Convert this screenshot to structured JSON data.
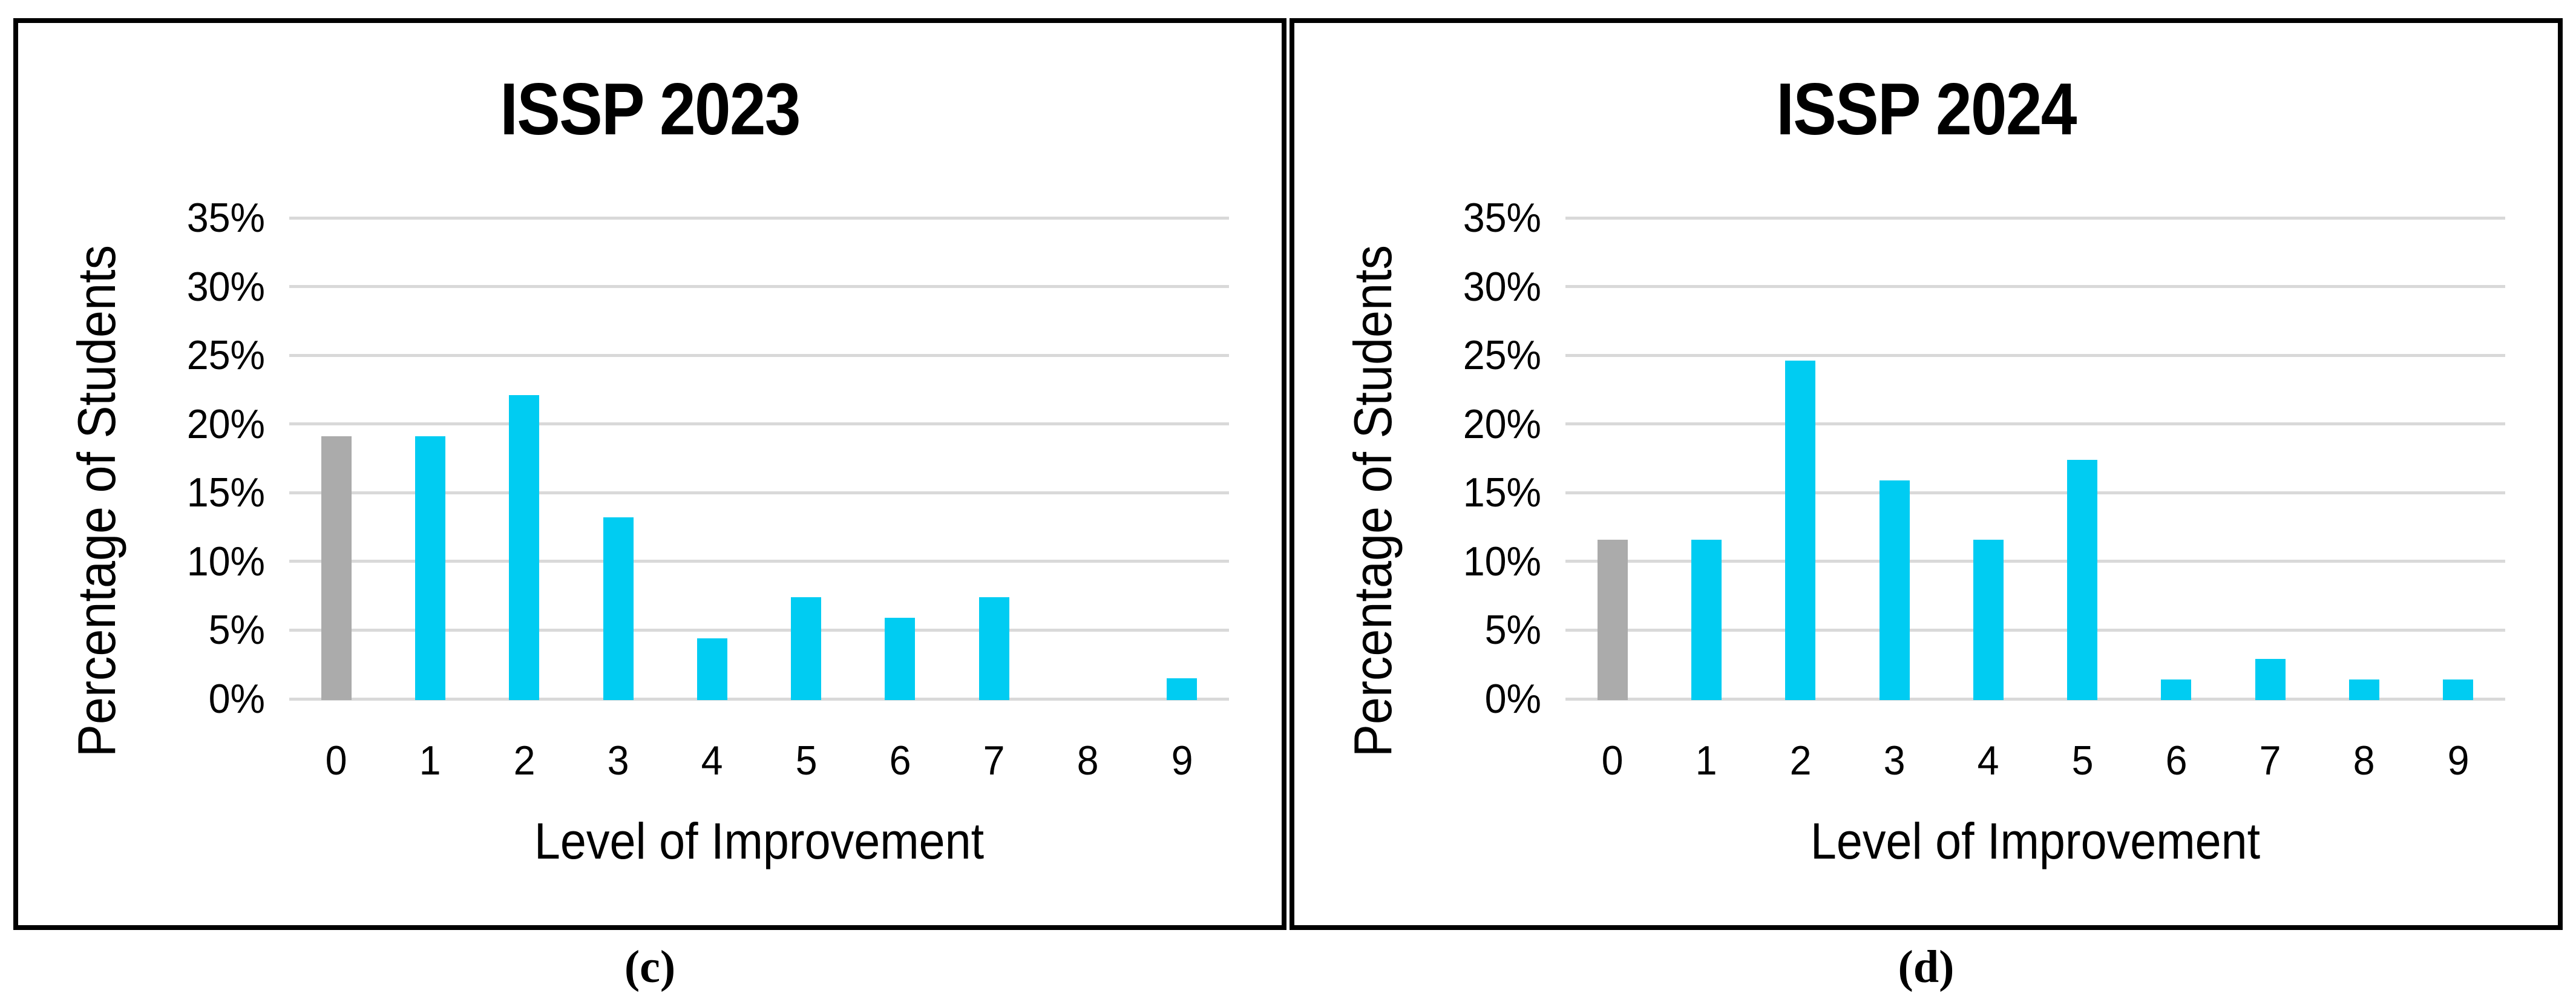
{
  "figure": {
    "description": "Two-panel bar chart figure comparing level of improvement distributions",
    "panel_titles": [
      "ISSP 2023",
      "ISSP 2024"
    ],
    "captions": [
      "(c)",
      "(d)"
    ]
  },
  "colors": {
    "bar_cyan": "#00CCF2",
    "bar_gray": "#ABABAB",
    "gridline": "#D9D9D9",
    "panel_border": "#000000",
    "text": "#000000",
    "background": "#FFFFFF"
  },
  "chart_data": [
    {
      "type": "bar",
      "title": "ISSP 2023",
      "xlabel": "Level of Improvement",
      "ylabel": "Percentage of Students",
      "caption": "(c)",
      "categories": [
        "0",
        "1",
        "2",
        "3",
        "4",
        "5",
        "6",
        "7",
        "8",
        "9"
      ],
      "values": [
        19.1,
        19.1,
        22.1,
        13.2,
        4.4,
        7.4,
        5.9,
        7.4,
        0,
        1.5
      ],
      "bar_colors": [
        "#ABABAB",
        "#00CCF2",
        "#00CCF2",
        "#00CCF2",
        "#00CCF2",
        "#00CCF2",
        "#00CCF2",
        "#00CCF2",
        "#00CCF2",
        "#00CCF2"
      ],
      "ylim": [
        0,
        35
      ],
      "ytick_step": 5,
      "ytick_labels": [
        "0%",
        "5%",
        "10%",
        "15%",
        "20%",
        "25%",
        "30%",
        "35%"
      ],
      "grid": true,
      "legend": false
    },
    {
      "type": "bar",
      "title": "ISSP 2024",
      "xlabel": "Level of Improvement",
      "ylabel": "Percentage of Students",
      "caption": "(d)",
      "categories": [
        "0",
        "1",
        "2",
        "3",
        "4",
        "5",
        "6",
        "7",
        "8",
        "9"
      ],
      "values": [
        11.6,
        11.6,
        24.6,
        15.9,
        11.6,
        17.4,
        1.4,
        2.9,
        1.4,
        1.4
      ],
      "bar_colors": [
        "#ABABAB",
        "#00CCF2",
        "#00CCF2",
        "#00CCF2",
        "#00CCF2",
        "#00CCF2",
        "#00CCF2",
        "#00CCF2",
        "#00CCF2",
        "#00CCF2"
      ],
      "ylim": [
        0,
        35
      ],
      "ytick_step": 5,
      "ytick_labels": [
        "0%",
        "5%",
        "10%",
        "15%",
        "20%",
        "25%",
        "30%",
        "35%"
      ],
      "grid": true,
      "legend": false
    }
  ]
}
